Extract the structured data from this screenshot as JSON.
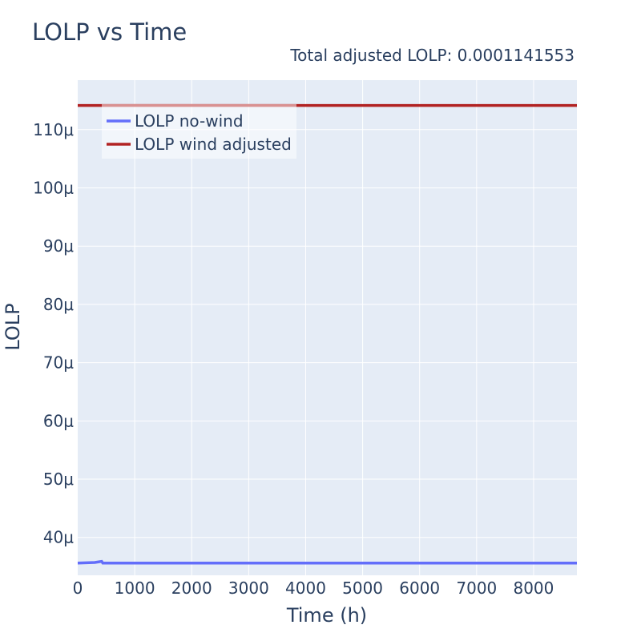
{
  "chart_data": {
    "type": "line",
    "title": "LOLP vs Time",
    "subtitle": "Total adjusted LOLP: 0.0001141553",
    "xlabel": "Time (h)",
    "ylabel": "LOLP",
    "xlim": [
      0,
      8760
    ],
    "ylim": [
      3.35e-05,
      0.0001185
    ],
    "x_ticks": [
      0,
      1000,
      2000,
      3000,
      4000,
      5000,
      6000,
      7000,
      8000
    ],
    "x_tick_labels": [
      "0",
      "1000",
      "2000",
      "3000",
      "4000",
      "5000",
      "6000",
      "7000",
      "8000"
    ],
    "y_ticks": [
      4e-05,
      5e-05,
      6e-05,
      7e-05,
      8e-05,
      9e-05,
      0.0001,
      0.00011
    ],
    "y_tick_labels": [
      "40μ",
      "50μ",
      "60μ",
      "70μ",
      "80μ",
      "90μ",
      "100μ",
      "110μ"
    ],
    "grid": true,
    "legend_position": "top-left",
    "series": [
      {
        "name": "LOLP no-wind",
        "color": "#636efa",
        "x": [
          0,
          300,
          420,
          440,
          8760
        ],
        "y": [
          3.56e-05,
          3.57e-05,
          3.59e-05,
          3.56e-05,
          3.56e-05
        ]
      },
      {
        "name": "LOLP wind adjusted",
        "color": "#b22222",
        "x": [
          0,
          8760
        ],
        "y": [
          0.0001141553,
          0.0001141553
        ]
      }
    ]
  }
}
